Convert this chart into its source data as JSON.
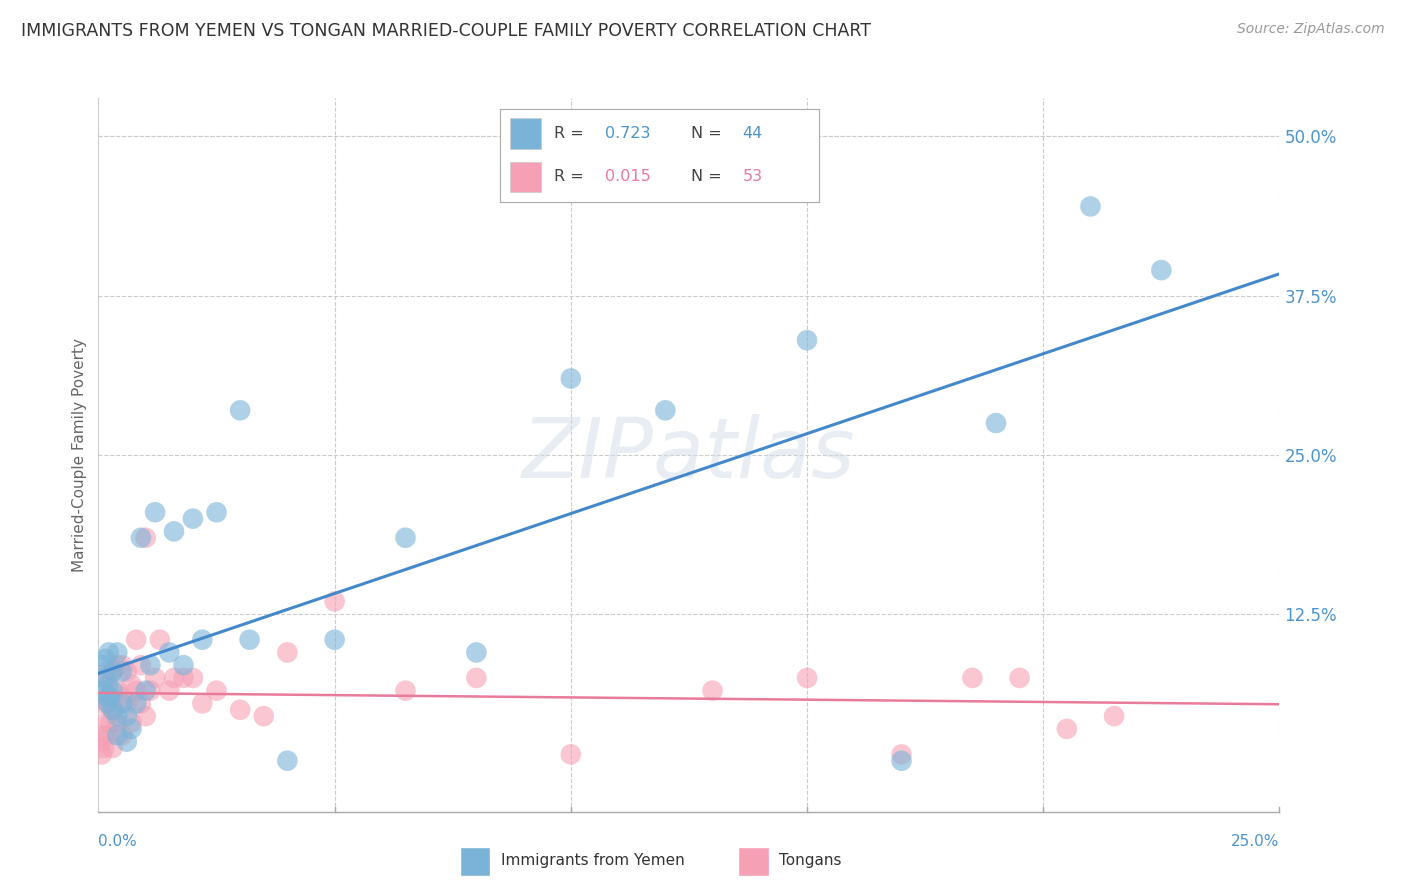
{
  "title": "IMMIGRANTS FROM YEMEN VS TONGAN MARRIED-COUPLE FAMILY POVERTY CORRELATION CHART",
  "source": "Source: ZipAtlas.com",
  "ylabel": "Married-Couple Family Poverty",
  "yticks": [
    0.0,
    0.125,
    0.25,
    0.375,
    0.5
  ],
  "ytick_labels": [
    "",
    "12.5%",
    "25.0%",
    "37.5%",
    "50.0%"
  ],
  "xlim": [
    0.0,
    0.25
  ],
  "ylim": [
    -0.03,
    0.53
  ],
  "series1_name": "Immigrants from Yemen",
  "series1_color": "#7ab3d8",
  "series2_name": "Tongans",
  "series2_color": "#f5a0b5",
  "series1_R": 0.723,
  "series1_N": 44,
  "series2_R": 0.015,
  "series2_N": 53,
  "watermark": "ZIPatlas",
  "background_color": "#ffffff",
  "grid_color": "#cccccc",
  "title_color": "#333333",
  "axis_label_color": "#4d94cc",
  "legend_R1_color": "#4d94cc",
  "legend_N1_color": "#4d94cc",
  "legend_R2_color": "#e87a9a",
  "legend_N2_color": "#e87a9a",
  "series1_x": [
    0.0008,
    0.001,
    0.0012,
    0.0015,
    0.0018,
    0.002,
    0.002,
    0.0022,
    0.0025,
    0.003,
    0.003,
    0.003,
    0.004,
    0.004,
    0.004,
    0.005,
    0.005,
    0.006,
    0.006,
    0.007,
    0.008,
    0.009,
    0.01,
    0.011,
    0.012,
    0.015,
    0.016,
    0.018,
    0.02,
    0.022,
    0.025,
    0.03,
    0.032,
    0.04,
    0.05,
    0.065,
    0.08,
    0.1,
    0.12,
    0.15,
    0.17,
    0.19,
    0.21,
    0.225
  ],
  "series1_y": [
    0.085,
    0.065,
    0.075,
    0.09,
    0.06,
    0.055,
    0.07,
    0.095,
    0.06,
    0.05,
    0.065,
    0.08,
    0.03,
    0.045,
    0.095,
    0.055,
    0.08,
    0.025,
    0.045,
    0.035,
    0.055,
    0.185,
    0.065,
    0.085,
    0.205,
    0.095,
    0.19,
    0.085,
    0.2,
    0.105,
    0.205,
    0.285,
    0.105,
    0.01,
    0.105,
    0.185,
    0.095,
    0.31,
    0.285,
    0.34,
    0.01,
    0.275,
    0.445,
    0.395
  ],
  "series2_x": [
    0.0005,
    0.0007,
    0.001,
    0.001,
    0.0012,
    0.0015,
    0.0015,
    0.002,
    0.002,
    0.002,
    0.0025,
    0.003,
    0.003,
    0.003,
    0.004,
    0.004,
    0.004,
    0.005,
    0.005,
    0.005,
    0.006,
    0.006,
    0.007,
    0.007,
    0.008,
    0.008,
    0.009,
    0.009,
    0.01,
    0.01,
    0.011,
    0.012,
    0.013,
    0.015,
    0.016,
    0.018,
    0.02,
    0.022,
    0.025,
    0.03,
    0.035,
    0.04,
    0.05,
    0.065,
    0.08,
    0.1,
    0.13,
    0.15,
    0.17,
    0.185,
    0.195,
    0.205,
    0.215
  ],
  "series2_y": [
    0.025,
    0.015,
    0.03,
    0.055,
    0.02,
    0.04,
    0.075,
    0.03,
    0.055,
    0.08,
    0.04,
    0.02,
    0.05,
    0.08,
    0.04,
    0.065,
    0.085,
    0.06,
    0.03,
    0.085,
    0.055,
    0.08,
    0.04,
    0.07,
    0.065,
    0.105,
    0.055,
    0.085,
    0.185,
    0.045,
    0.065,
    0.075,
    0.105,
    0.065,
    0.075,
    0.075,
    0.075,
    0.055,
    0.065,
    0.05,
    0.045,
    0.095,
    0.135,
    0.065,
    0.075,
    0.015,
    0.065,
    0.075,
    0.015,
    0.075,
    0.075,
    0.035,
    0.045
  ],
  "xtick_positions": [
    0.05,
    0.1,
    0.15,
    0.2,
    0.25
  ],
  "ytick_grid_positions": [
    0.125,
    0.25,
    0.375,
    0.5
  ]
}
